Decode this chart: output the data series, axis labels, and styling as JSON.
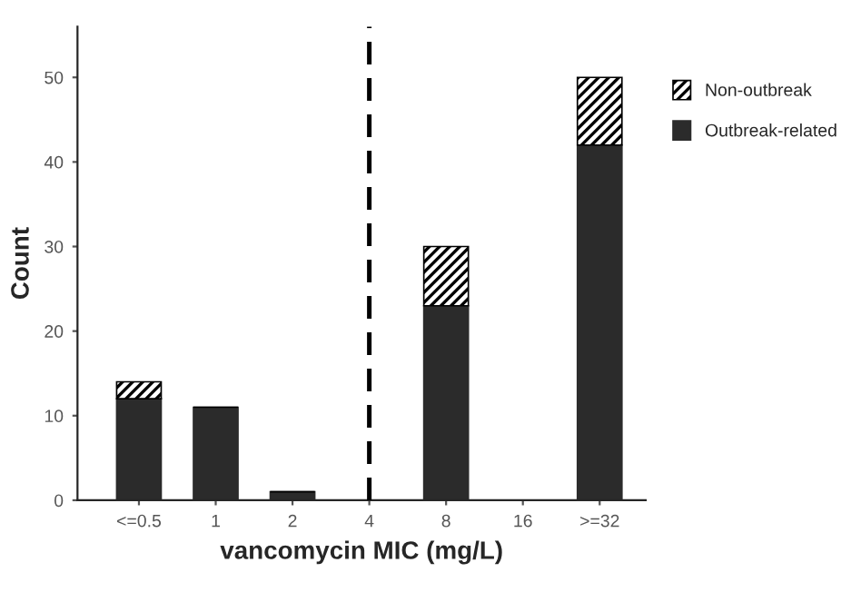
{
  "chart_data": {
    "type": "bar",
    "stacked": true,
    "xlabel": "vancomycin MIC (mg/L)",
    "ylabel": "Count",
    "categories": [
      "<=0.5",
      "1",
      "2",
      "4",
      "8",
      "16",
      ">=32"
    ],
    "series": [
      {
        "name": "Outbreak-related",
        "color": "#2b2b2b",
        "values": [
          12,
          11,
          1,
          0,
          23,
          0,
          42
        ]
      },
      {
        "name": "Non-outbreak",
        "color": "#000000",
        "values": [
          2,
          0,
          0,
          0,
          7,
          0,
          8
        ]
      }
    ],
    "ylim": [
      0,
      56
    ],
    "yticks": [
      0,
      10,
      20,
      30,
      40,
      50
    ],
    "grid": false,
    "legend": "top right",
    "ref_lines": [
      {
        "axis": "x",
        "value": "4",
        "color": "#000000",
        "line_style": "dashed"
      }
    ]
  }
}
